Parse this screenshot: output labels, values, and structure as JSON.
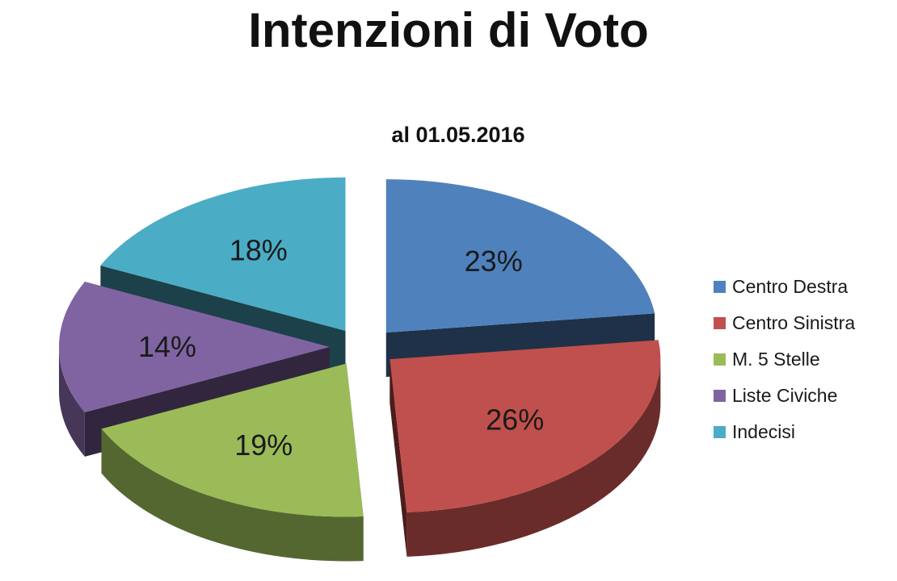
{
  "title": "Intenzioni di Voto",
  "chart_data": {
    "type": "pie",
    "subtitle": "al 01.05.2016",
    "exploded": true,
    "three_d": true,
    "legend_position": "right",
    "slices": [
      {
        "name": "Centro Destra",
        "value": 23,
        "label": "23%",
        "color": "#4f81bd"
      },
      {
        "name": "Centro Sinistra",
        "value": 26,
        "label": "26%",
        "color": "#c0504d"
      },
      {
        "name": "M. 5 Stelle",
        "value": 19,
        "label": "19%",
        "color": "#9bbb59"
      },
      {
        "name": "Liste Civiche",
        "value": 14,
        "label": "14%",
        "color": "#8064a2"
      },
      {
        "name": "Indecisi",
        "value": 18,
        "label": "18%",
        "color": "#4bacc6"
      }
    ]
  }
}
